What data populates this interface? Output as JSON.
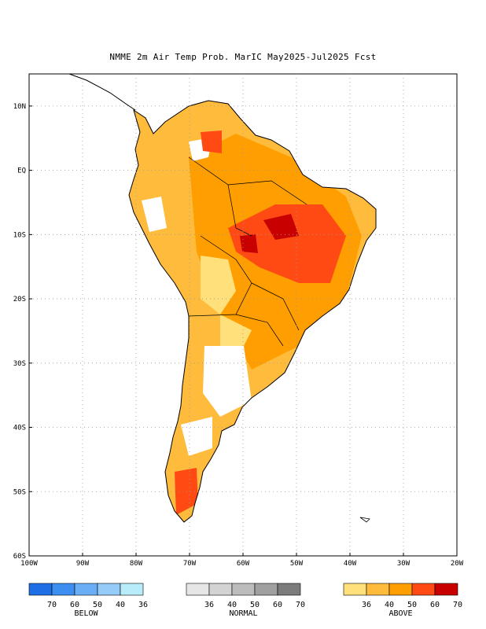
{
  "title": "NMME 2m Air Temp Prob. MarIC  May2025-Jul2025 Fcst",
  "map": {
    "lon_range": [
      -100,
      -20
    ],
    "lat_range": [
      -60,
      15
    ],
    "lon_ticks": [
      "100W",
      "90W",
      "80W",
      "70W",
      "60W",
      "50W",
      "40W",
      "30W",
      "20W"
    ],
    "lat_ticks": [
      "10N",
      "EQ",
      "10S",
      "20S",
      "30S",
      "40S",
      "50S",
      "60S"
    ],
    "grid": "dotted"
  },
  "legend": {
    "below": {
      "label": "BELOW",
      "values": [
        "70",
        "60",
        "50",
        "40",
        "36"
      ],
      "colors": [
        "#1e6fe6",
        "#3c8ff0",
        "#6aaef5",
        "#94cbf8",
        "#b9ecfb"
      ]
    },
    "normal": {
      "label": "NORMAL",
      "values": [
        "36",
        "40",
        "50",
        "60",
        "70"
      ],
      "colors": [
        "#e6e6e6",
        "#d3d3d3",
        "#bcbcbc",
        "#a0a0a0",
        "#7c7c7c"
      ]
    },
    "above": {
      "label": "ABOVE",
      "values": [
        "36",
        "40",
        "50",
        "60",
        "70"
      ],
      "colors": [
        "#ffe07a",
        "#ffbb3c",
        "#ff9e00",
        "#ff4a14",
        "#c80000"
      ]
    }
  }
}
